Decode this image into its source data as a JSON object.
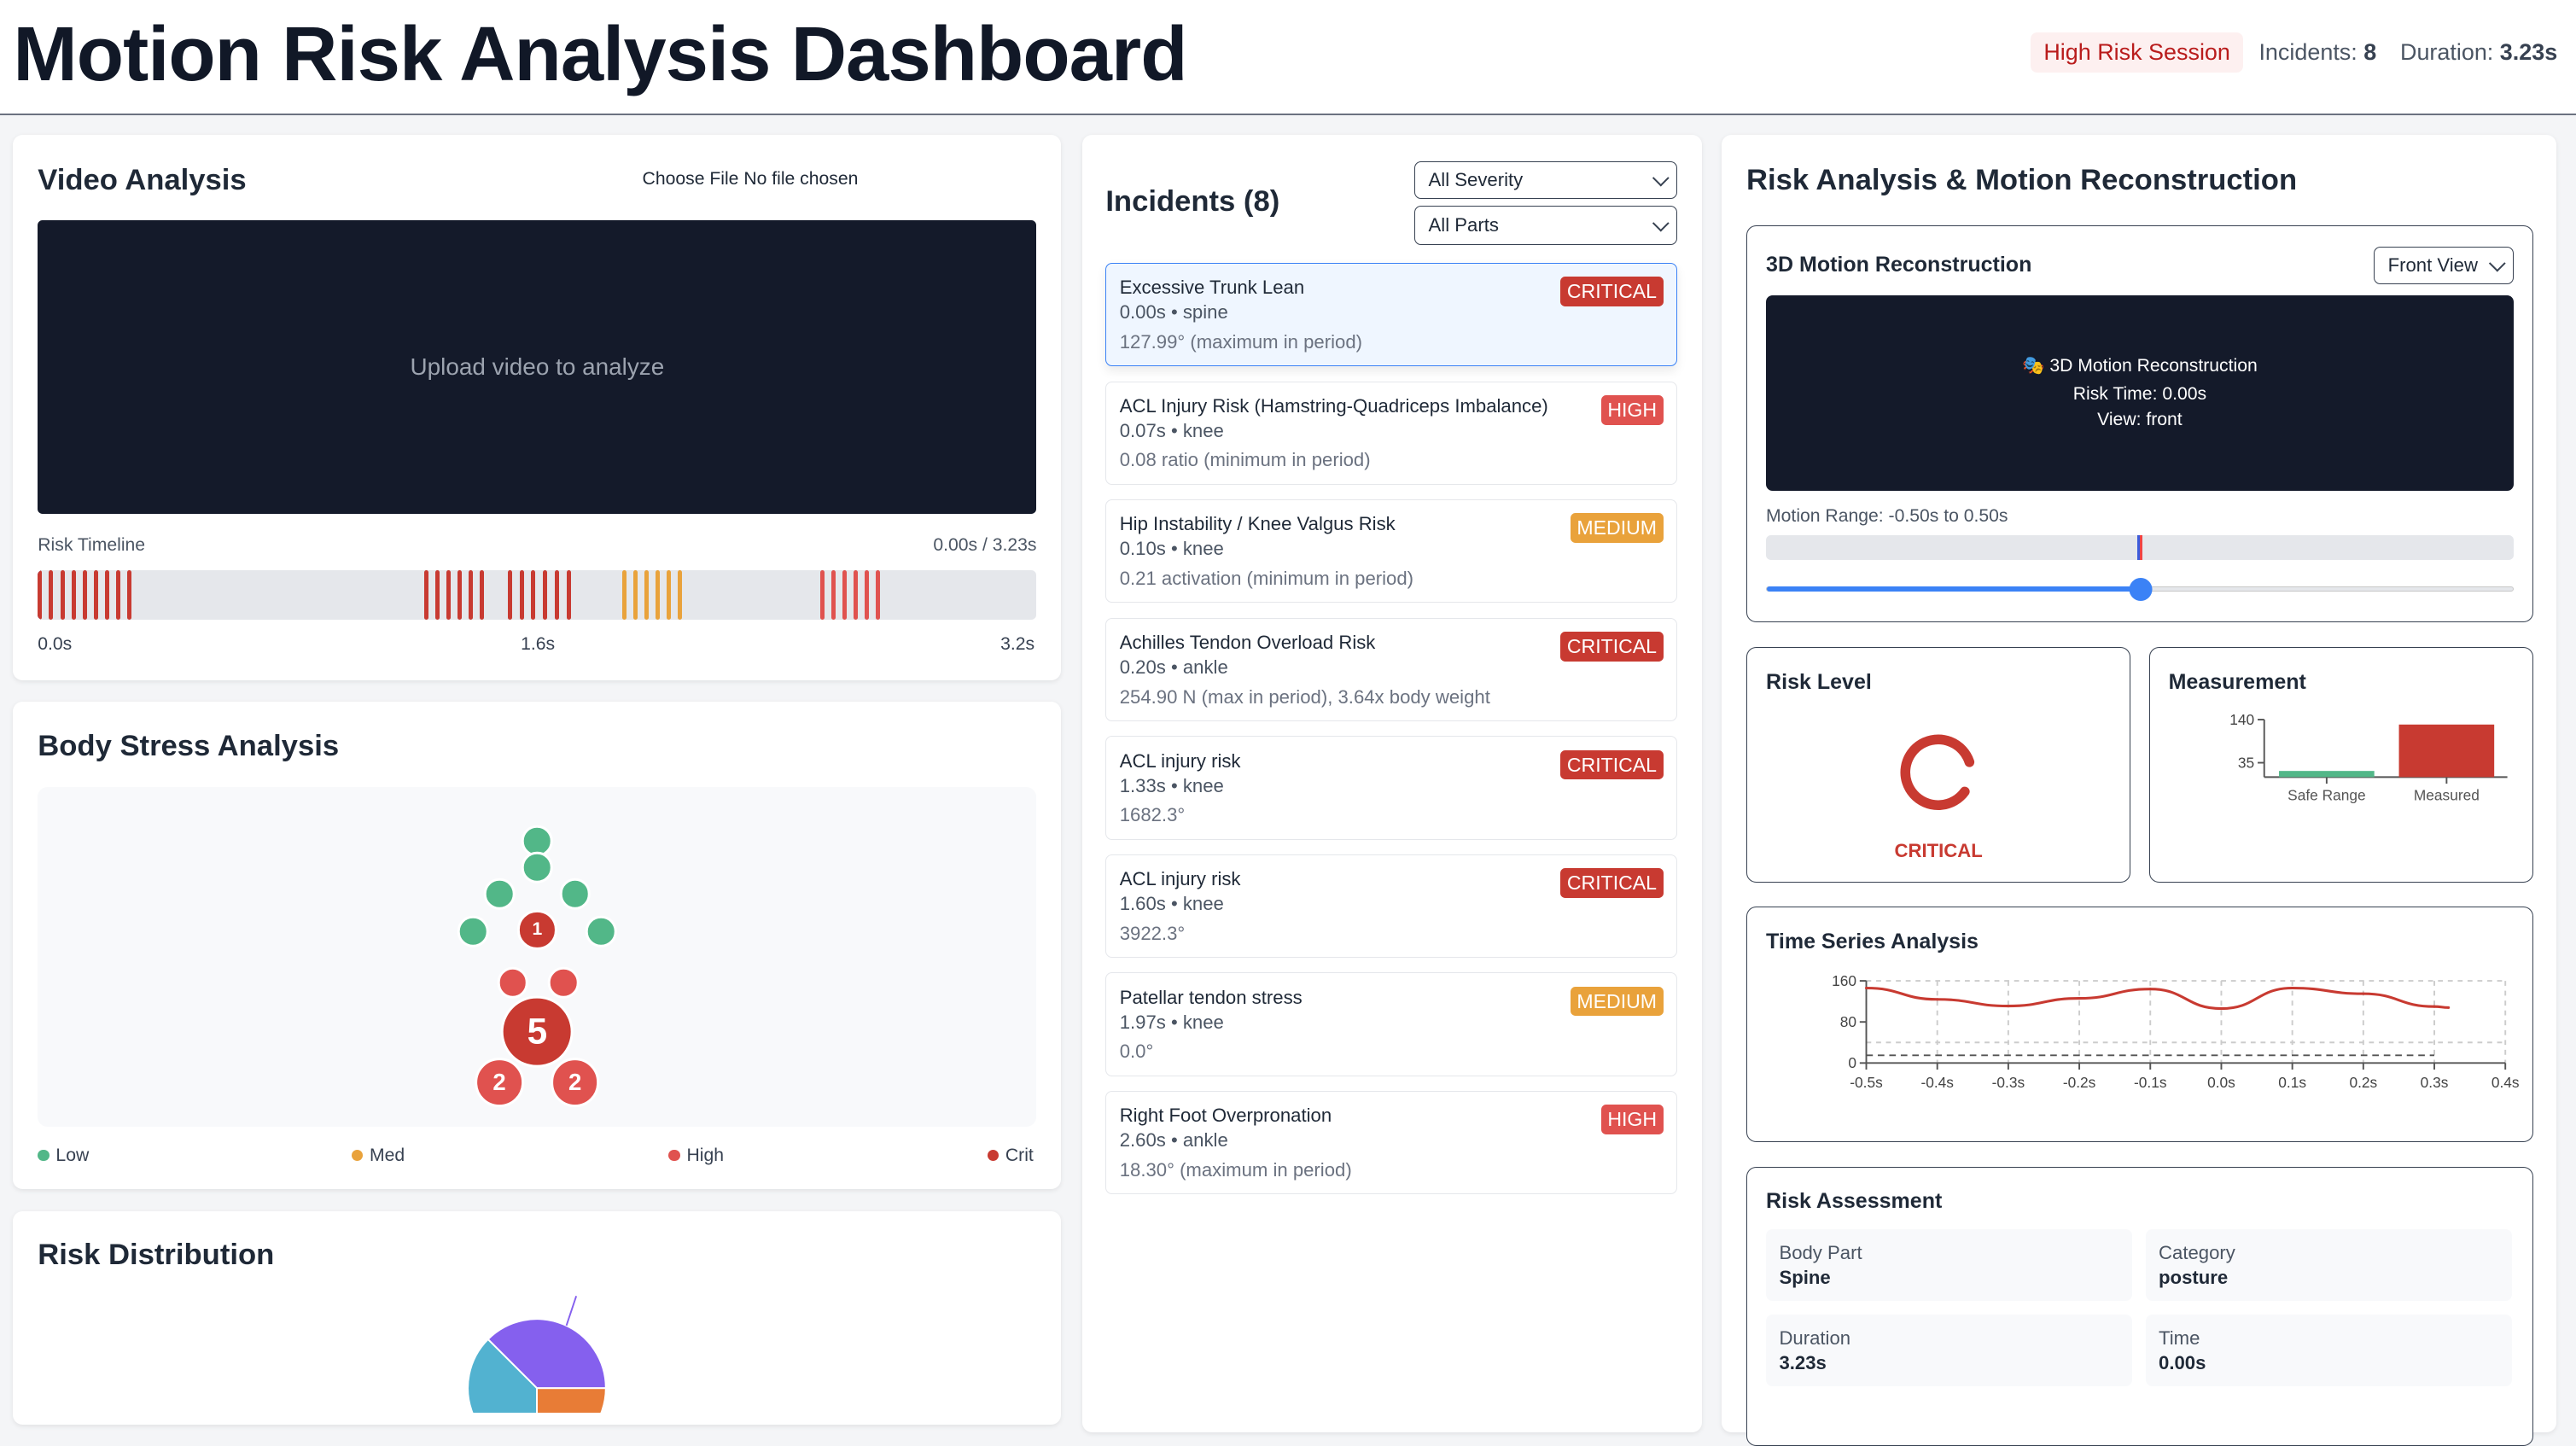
{
  "header": {
    "title": "Motion Risk Analysis Dashboard",
    "session_badge": "High Risk Session",
    "incidents_label": "Incidents:",
    "incidents_value": "8",
    "duration_label": "Duration:",
    "duration_value": "3.23s"
  },
  "colors": {
    "critical": "#c83a31",
    "high": "#e0524f",
    "medium": "#e9a23b",
    "low": "#52b788",
    "accent": "#3b82f6",
    "dark_panel": "#141a2a"
  },
  "video": {
    "title": "Video Analysis",
    "file_input": "Choose File No file chosen",
    "placeholder": "Upload video to analyze",
    "timeline_label": "Risk Timeline",
    "timeline_time": "0.00s / 3.23s",
    "timeline_duration": 3.23,
    "timeline_ticks": [
      "0.0s",
      "1.6s",
      "3.2s"
    ],
    "timeline_groups": [
      {
        "start": 0.0,
        "end": 0.29,
        "severity": "critical",
        "marks": 9
      },
      {
        "start": 1.25,
        "end": 1.43,
        "severity": "critical",
        "marks": 6
      },
      {
        "start": 1.52,
        "end": 1.71,
        "severity": "critical",
        "marks": 6
      },
      {
        "start": 1.89,
        "end": 2.07,
        "severity": "medium",
        "marks": 6
      },
      {
        "start": 2.53,
        "end": 2.71,
        "severity": "high",
        "marks": 6
      }
    ]
  },
  "body_stress": {
    "title": "Body Stress Analysis",
    "joints": [
      {
        "part": "head",
        "severity": "low",
        "count": ""
      },
      {
        "part": "neck",
        "severity": "low",
        "count": ""
      },
      {
        "part": "left-shoulder",
        "severity": "low",
        "count": ""
      },
      {
        "part": "right-shoulder",
        "severity": "low",
        "count": ""
      },
      {
        "part": "left-hand",
        "severity": "low",
        "count": ""
      },
      {
        "part": "spine",
        "severity": "critical",
        "count": "1"
      },
      {
        "part": "right-hand",
        "severity": "low",
        "count": ""
      },
      {
        "part": "left-hip",
        "severity": "high",
        "count": ""
      },
      {
        "part": "right-hip",
        "severity": "high",
        "count": ""
      },
      {
        "part": "knee",
        "severity": "critical",
        "count": "5"
      },
      {
        "part": "left-ankle",
        "severity": "high",
        "count": "2"
      },
      {
        "part": "right-ankle",
        "severity": "high",
        "count": "2"
      }
    ],
    "legend": [
      {
        "label": "Low",
        "severity": "low"
      },
      {
        "label": "Med",
        "severity": "medium"
      },
      {
        "label": "High",
        "severity": "high"
      },
      {
        "label": "Crit",
        "severity": "critical"
      }
    ]
  },
  "distribution": {
    "title": "Risk Distribution"
  },
  "chart_data": [
    {
      "type": "pie",
      "values": [
        25,
        37.5,
        37.5
      ],
      "colors": [
        "#e87c36",
        "#52b2d0",
        "#8560ee"
      ]
    },
    {
      "type": "bar",
      "title": "Measurement",
      "categories": [
        "Safe Range",
        "Measured"
      ],
      "values": [
        15,
        127.99
      ],
      "colors": [
        "#52b788",
        "#c83a31"
      ],
      "yticks": [
        35,
        140
      ],
      "ylim": [
        0,
        140
      ]
    },
    {
      "type": "line",
      "title": "Time Series Analysis",
      "x": [
        -0.5,
        -0.4,
        -0.3,
        -0.2,
        -0.1,
        0.0,
        0.1,
        0.2,
        0.3,
        0.32
      ],
      "y": [
        146,
        124,
        111,
        126,
        144,
        106,
        146,
        135,
        110,
        108
      ],
      "xticks": [
        "-0.5s",
        "-0.4s",
        "-0.3s",
        "-0.2s",
        "-0.1s",
        "0.0s",
        "0.1s",
        "0.2s",
        "0.3s",
        "0.4s"
      ],
      "yticks": [
        "0",
        "80",
        "160"
      ],
      "xlim": [
        -0.5,
        0.4
      ],
      "ylim": [
        0,
        160
      ],
      "thresholds": [
        15,
        40
      ],
      "grid": true,
      "color": "#c83a31"
    }
  ],
  "incidents": {
    "title": "Incidents (8)",
    "severity_filter": "All Severity",
    "parts_filter": "All Parts",
    "items": [
      {
        "title": "Excessive Trunk Lean",
        "meta": "0.00s • spine",
        "detail": "127.99° (maximum in period)",
        "badge": "CRITICAL",
        "severity": "critical",
        "selected": true
      },
      {
        "title": "ACL Injury Risk (Hamstring-Quadriceps Imbalance)",
        "meta": "0.07s • knee",
        "detail": "0.08 ratio (minimum in period)",
        "badge": "HIGH",
        "severity": "high"
      },
      {
        "title": "Hip Instability / Knee Valgus Risk",
        "meta": "0.10s • knee",
        "detail": "0.21 activation (minimum in period)",
        "badge": "MEDIUM",
        "severity": "medium"
      },
      {
        "title": "Achilles Tendon Overload Risk",
        "meta": "0.20s • ankle",
        "detail": "254.90 N (max in period), 3.64x body weight",
        "badge": "CRITICAL",
        "severity": "critical"
      },
      {
        "title": "ACL injury risk",
        "meta": "1.33s • knee",
        "detail": "1682.3°",
        "badge": "CRITICAL",
        "severity": "critical"
      },
      {
        "title": "ACL injury risk",
        "meta": "1.60s • knee",
        "detail": "3922.3°",
        "badge": "CRITICAL",
        "severity": "critical"
      },
      {
        "title": "Patellar tendon stress",
        "meta": "1.97s • knee",
        "detail": "0.0°",
        "badge": "MEDIUM",
        "severity": "medium"
      },
      {
        "title": "Right Foot Overpronation",
        "meta": "2.60s • ankle",
        "detail": "18.30° (maximum in period)",
        "badge": "HIGH",
        "severity": "high"
      }
    ]
  },
  "analysis": {
    "title": "Risk Analysis & Motion Reconstruction",
    "recon": {
      "title": "3D Motion Reconstruction",
      "view_select": "Front View",
      "icon": "theater-masks-icon",
      "panel_title": "🎭 3D Motion Reconstruction",
      "risk_time": "Risk Time: 0.00s",
      "view": "View: front",
      "range_label": "Motion Range: -0.50s to 0.50s",
      "marker_position": 0.5,
      "slider_value": 0.5
    },
    "risk_level": {
      "title": "Risk Level",
      "label": "CRITICAL",
      "gauge_fill": 0.85
    },
    "measurement": {
      "title": "Measurement"
    },
    "timeseries": {
      "title": "Time Series Analysis"
    },
    "assessment": {
      "title": "Risk Assessment",
      "cells": [
        {
          "label": "Body Part",
          "value": "Spine"
        },
        {
          "label": "Category",
          "value": "posture"
        },
        {
          "label": "Duration",
          "value": "3.23s"
        },
        {
          "label": "Time",
          "value": "0.00s"
        }
      ]
    }
  }
}
